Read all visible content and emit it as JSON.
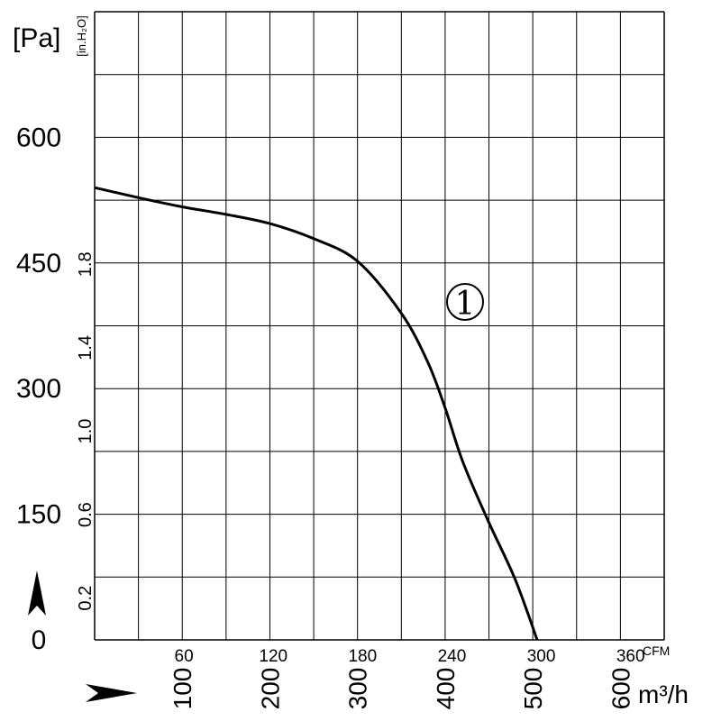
{
  "chart_data": {
    "type": "line",
    "units": {
      "y_left": "[Pa]",
      "y_inner": "[in.H₂O]",
      "x_top": "CFM",
      "x_bottom": "m³/h"
    },
    "y_left_ticks": [
      "0",
      "150",
      "300",
      "450",
      "600"
    ],
    "y_inner_ticks": [
      "0.2",
      "0.6",
      "1.0",
      "1.4",
      "1.8"
    ],
    "x_top_ticks": [
      "60",
      "120",
      "180",
      "240",
      "300",
      "360"
    ],
    "x_bottom_ticks": [
      "100",
      "200",
      "300",
      "400",
      "500",
      "600"
    ],
    "xlim_m3h": [
      0,
      650
    ],
    "ylim_pa": [
      0,
      750
    ],
    "grid": true,
    "series": [
      {
        "label": "1",
        "color": "#000000",
        "x_m3h": [
          0,
          50,
          100,
          150,
          200,
          250,
          300,
          350,
          380,
          400,
          420,
          450,
          480,
          505
        ],
        "y_pa": [
          540,
          528,
          517,
          508,
          497,
          479,
          452,
          390,
          332,
          277,
          213,
          140,
          72,
          0
        ]
      }
    ],
    "axis_arrows": [
      "y-axis-arrow",
      "x-axis-arrow"
    ]
  }
}
